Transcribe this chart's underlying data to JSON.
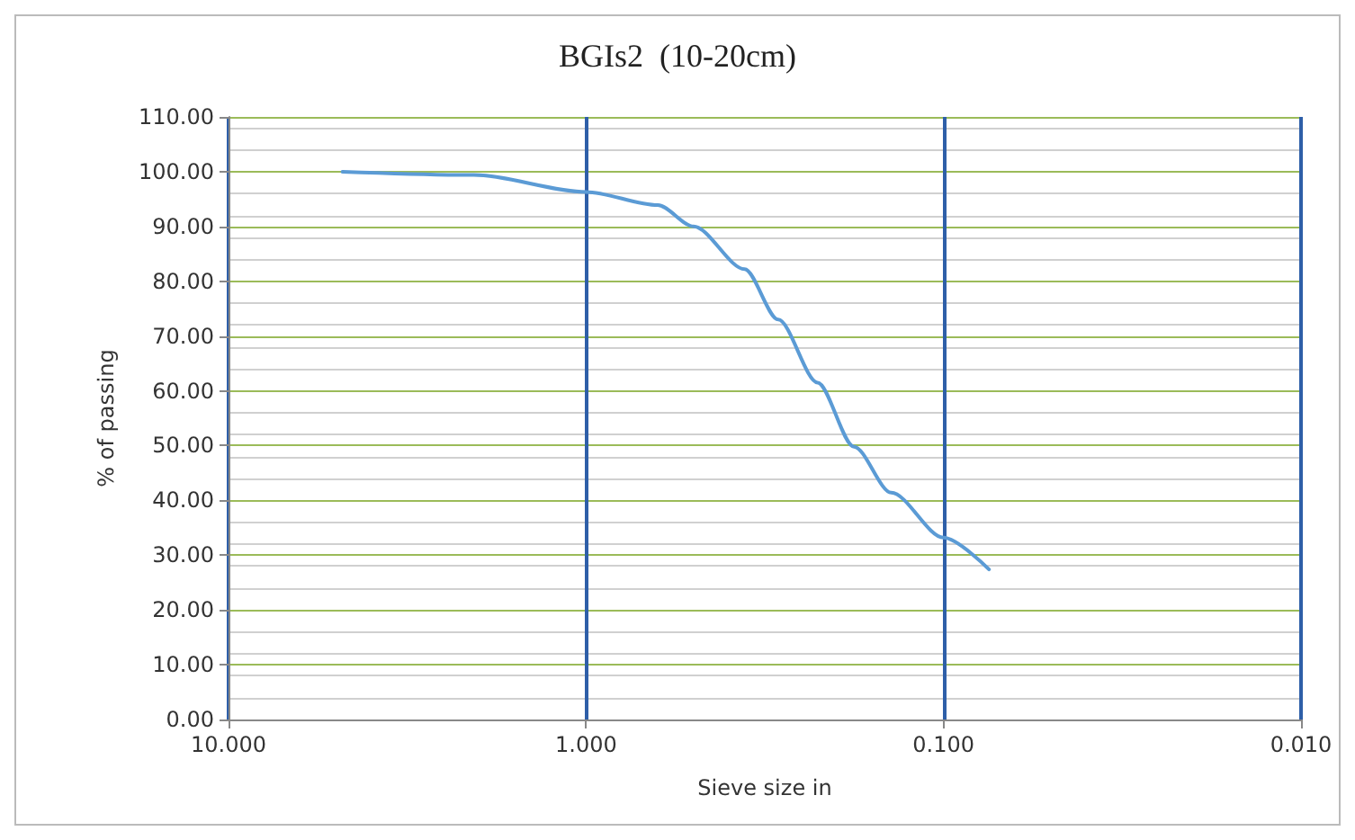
{
  "chart_data": {
    "type": "line",
    "title": "BGIs2  (10-20cm)",
    "xlabel": "Sieve size in",
    "ylabel": "% of passing",
    "log": "x",
    "grid": true,
    "marker": "none",
    "xlim": [
      10,
      0.01
    ],
    "xticks": [
      {
        "value": 10,
        "label": "10.000"
      },
      {
        "value": 1,
        "label": "1.000"
      },
      {
        "value": 0.1,
        "label": "0.100"
      },
      {
        "value": 0.01,
        "label": "0.010"
      }
    ],
    "ylim": [
      0,
      110
    ],
    "yticks": [
      {
        "value": 0,
        "label": "0.00"
      },
      {
        "value": 10,
        "label": "10.00"
      },
      {
        "value": 20,
        "label": "20.00"
      },
      {
        "value": 30,
        "label": "30.00"
      },
      {
        "value": 40,
        "label": "40.00"
      },
      {
        "value": 50,
        "label": "50.00"
      },
      {
        "value": 60,
        "label": "60.00"
      },
      {
        "value": 70,
        "label": "70.00"
      },
      {
        "value": 80,
        "label": "80.00"
      },
      {
        "value": 90,
        "label": "90.00"
      },
      {
        "value": 100,
        "label": "100.00"
      },
      {
        "value": 110,
        "label": "110.00"
      }
    ],
    "x": [
      4.8,
      2.06,
      1,
      0.63,
      0.5,
      0.36,
      0.29,
      0.225,
      0.178,
      0.14,
      0.1,
      0.0746
    ],
    "series": [
      {
        "color": "#5b9bd5",
        "values": [
          100,
          99.4,
          96.3,
          93.9,
          90,
          82.2,
          73,
          61.5,
          49.8,
          41.4,
          33.2,
          27.4
        ]
      }
    ]
  }
}
